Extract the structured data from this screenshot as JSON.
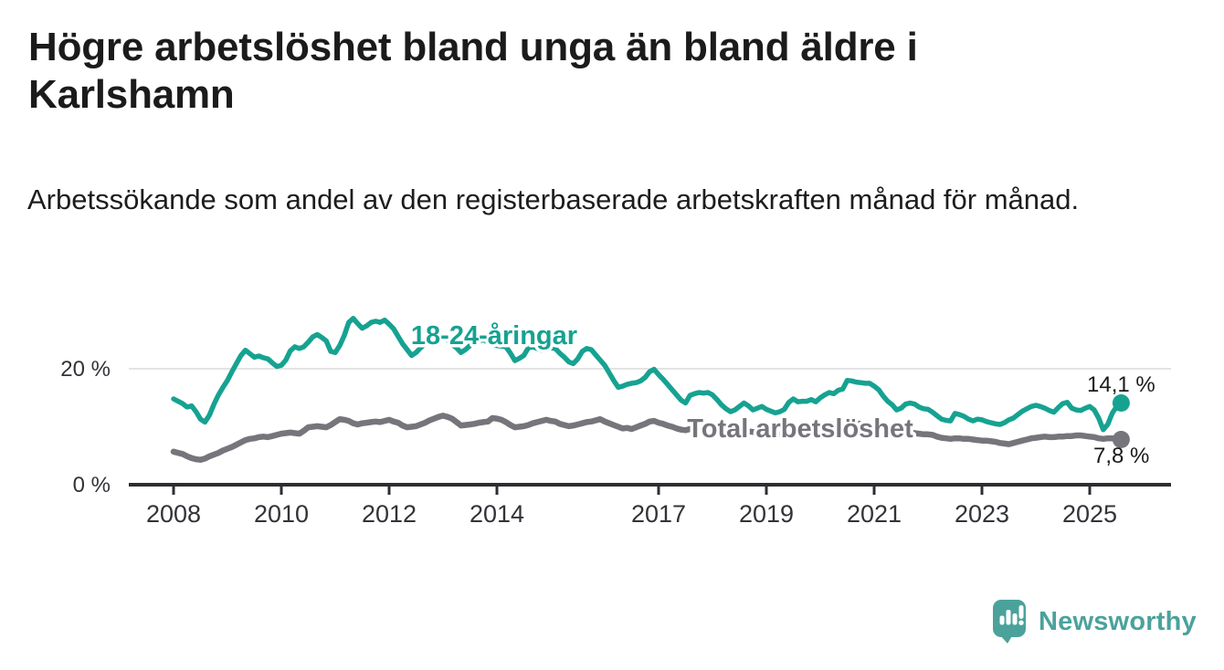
{
  "header": {
    "title": "Högre arbetslöshet bland unga än bland äldre i Karlshamn",
    "subtitle": "Arbetssökande som andel av den registerbaserade arbetskraften månad för månad."
  },
  "chart_data": {
    "type": "line",
    "x_start": 2008.0,
    "x_step_months": 1,
    "x_end_label_period": "2025-08",
    "grid": "single horizontal gridline at 20 %",
    "legend_position": "labels drawn on lines",
    "xlim": [
      2007.2,
      2026.6
    ],
    "ylim": [
      0,
      30
    ],
    "x_ticks": [
      {
        "year": 2008,
        "label": "2008"
      },
      {
        "year": 2010,
        "label": "2010"
      },
      {
        "year": 2012,
        "label": "2012"
      },
      {
        "year": 2014,
        "label": "2014"
      },
      {
        "year": 2017,
        "label": "2017"
      },
      {
        "year": 2019,
        "label": "2019"
      },
      {
        "year": 2021,
        "label": "2021"
      },
      {
        "year": 2023,
        "label": "2023"
      },
      {
        "year": 2025,
        "label": "2025"
      }
    ],
    "y_ticks": [
      {
        "value": 20,
        "label": "20 %"
      },
      {
        "value": 0,
        "label": "0 %"
      }
    ],
    "series": [
      {
        "name": "18-24-åringar",
        "color": "#16a291",
        "end_label": "14,1 %",
        "end_value": 14.1,
        "values": [
          14.8,
          14.4,
          14.0,
          13.4,
          13.6,
          12.6,
          11.3,
          10.8,
          12.0,
          13.9,
          15.5,
          16.8,
          18.0,
          19.5,
          20.9,
          22.3,
          23.2,
          22.6,
          22.0,
          22.2,
          21.9,
          21.7,
          21.0,
          20.4,
          20.6,
          21.5,
          23.1,
          23.8,
          23.5,
          23.8,
          24.6,
          25.5,
          25.9,
          25.4,
          24.8,
          23.0,
          22.8,
          24.0,
          25.7,
          28.0,
          28.7,
          27.8,
          27.0,
          27.4,
          28.0,
          28.2,
          28.0,
          28.4,
          27.7,
          26.9,
          25.6,
          24.3,
          23.3,
          22.3,
          22.8,
          23.6,
          24.3,
          24.8,
          25.1,
          25.3,
          25.5,
          25.0,
          24.2,
          23.6,
          22.8,
          23.3,
          24.0,
          24.5,
          24.8,
          25.0,
          24.6,
          24.2,
          24.0,
          23.9,
          23.8,
          22.7,
          21.4,
          21.8,
          22.3,
          23.6,
          23.8,
          23.5,
          23.2,
          23.4,
          23.6,
          23.5,
          22.7,
          22.0,
          21.2,
          20.9,
          21.7,
          23.0,
          23.5,
          23.3,
          22.4,
          21.5,
          20.6,
          19.3,
          18.0,
          16.8,
          17.0,
          17.3,
          17.5,
          17.6,
          17.9,
          18.5,
          19.5,
          19.9,
          19.0,
          18.2,
          17.3,
          16.4,
          15.5,
          14.6,
          14.1,
          15.4,
          15.7,
          15.9,
          15.8,
          15.9,
          15.5,
          14.7,
          13.8,
          13.1,
          12.6,
          12.9,
          13.5,
          14.1,
          13.6,
          12.9,
          13.2,
          13.5,
          13.0,
          12.7,
          12.4,
          12.6,
          13.0,
          14.2,
          14.8,
          14.3,
          14.4,
          14.4,
          14.7,
          14.3,
          15.0,
          15.5,
          15.9,
          15.7,
          16.3,
          16.5,
          18.0,
          17.9,
          17.7,
          17.6,
          17.5,
          17.5,
          17.0,
          16.4,
          15.3,
          14.4,
          13.8,
          12.9,
          13.2,
          13.9,
          14.1,
          13.9,
          13.4,
          13.1,
          13.0,
          12.5,
          11.9,
          11.3,
          11.1,
          11.0,
          12.3,
          12.1,
          11.8,
          11.3,
          11.0,
          11.3,
          11.2,
          10.9,
          10.7,
          10.5,
          10.4,
          10.7,
          11.2,
          11.5,
          12.1,
          12.7,
          13.1,
          13.5,
          13.7,
          13.5,
          13.2,
          12.8,
          12.5,
          13.3,
          14.0,
          14.2,
          13.2,
          12.9,
          12.8,
          13.2,
          13.5,
          12.9,
          11.5,
          9.5,
          10.4,
          12.3,
          13.5,
          14.1
        ]
      },
      {
        "name": "Total arbetslöshet",
        "color": "#76757b",
        "end_label": "7,8 %",
        "end_value": 7.8,
        "values": [
          5.7,
          5.5,
          5.3,
          4.9,
          4.6,
          4.4,
          4.3,
          4.5,
          4.9,
          5.2,
          5.5,
          5.9,
          6.2,
          6.5,
          6.9,
          7.3,
          7.7,
          7.9,
          8.0,
          8.2,
          8.3,
          8.2,
          8.4,
          8.6,
          8.8,
          8.9,
          9.0,
          8.9,
          8.8,
          9.3,
          9.9,
          10.0,
          10.1,
          10.0,
          9.9,
          10.3,
          10.8,
          11.3,
          11.2,
          11.0,
          10.6,
          10.4,
          10.6,
          10.7,
          10.8,
          10.9,
          10.8,
          11.0,
          11.2,
          10.9,
          10.7,
          10.2,
          9.9,
          10.0,
          10.1,
          10.4,
          10.7,
          11.1,
          11.4,
          11.7,
          11.9,
          11.7,
          11.4,
          10.8,
          10.2,
          10.3,
          10.4,
          10.5,
          10.7,
          10.8,
          10.9,
          11.5,
          11.4,
          11.2,
          10.8,
          10.3,
          9.9,
          10.0,
          10.1,
          10.3,
          10.6,
          10.8,
          11.0,
          11.2,
          11.0,
          10.9,
          10.5,
          10.3,
          10.1,
          10.2,
          10.4,
          10.6,
          10.8,
          10.9,
          11.1,
          11.3,
          10.9,
          10.6,
          10.3,
          10.0,
          9.7,
          9.8,
          9.6,
          9.9,
          10.2,
          10.5,
          10.9,
          11.0,
          10.7,
          10.5,
          10.2,
          10.0,
          9.7,
          9.5,
          9.4,
          9.6,
          9.7,
          9.8,
          9.7,
          9.6,
          9.4,
          9.2,
          9.0,
          8.8,
          8.7,
          8.8,
          9.0,
          9.1,
          9.2,
          9.1,
          9.0,
          8.9,
          8.8,
          8.7,
          8.6,
          8.7,
          8.8,
          8.9,
          9.0,
          9.1,
          9.2,
          9.3,
          9.4,
          9.5,
          9.7,
          9.9,
          10.2,
          10.4,
          10.6,
          10.7,
          10.8,
          10.7,
          10.6,
          10.5,
          10.4,
          10.3,
          10.2,
          10.0,
          9.8,
          9.6,
          9.4,
          9.3,
          9.2,
          9.1,
          9.0,
          8.9,
          8.8,
          8.7,
          8.7,
          8.6,
          8.3,
          8.1,
          8.0,
          7.9,
          8.0,
          8.0,
          7.9,
          7.9,
          7.8,
          7.7,
          7.6,
          7.6,
          7.5,
          7.4,
          7.2,
          7.1,
          7.0,
          7.2,
          7.4,
          7.6,
          7.8,
          8.0,
          8.1,
          8.2,
          8.3,
          8.2,
          8.2,
          8.3,
          8.3,
          8.4,
          8.4,
          8.5,
          8.5,
          8.4,
          8.3,
          8.2,
          8.0,
          7.9,
          8.0,
          8.0,
          7.9,
          7.8
        ]
      }
    ]
  },
  "footer": {
    "brand": "Newsworthy",
    "brand_color": "#4ba29b"
  }
}
